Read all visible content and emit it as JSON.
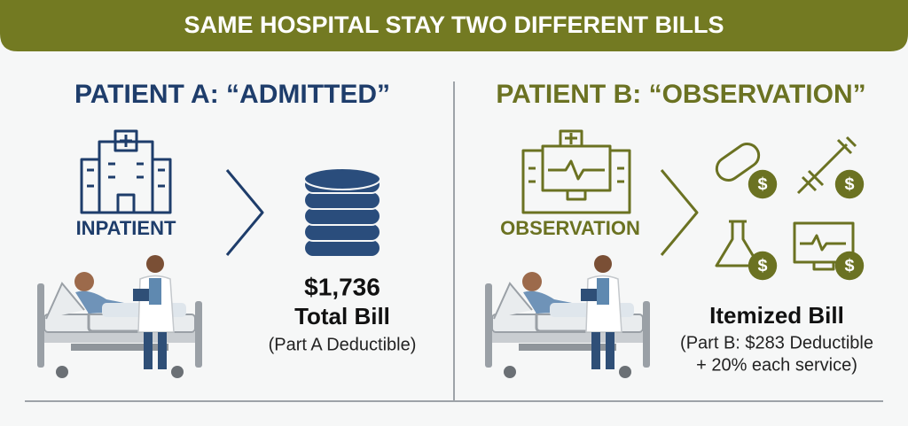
{
  "header": {
    "title": "SAME HOSPITAL STAY TWO DIFFERENT BILLS"
  },
  "panels": [
    {
      "title": "PATIENT A: “ADMITTED”",
      "label": "INPATIENT",
      "amount": "$1,736",
      "bill": "Total Bill",
      "notes": [
        "(Part A Deductible)"
      ]
    },
    {
      "title": "PATIENT B: “OBSERVATION”",
      "label": "OBSERVATION",
      "bill": "Itemized Bill",
      "notes": [
        "(Part B: $283 Deductible",
        "+ 20% each service)"
      ]
    }
  ]
}
